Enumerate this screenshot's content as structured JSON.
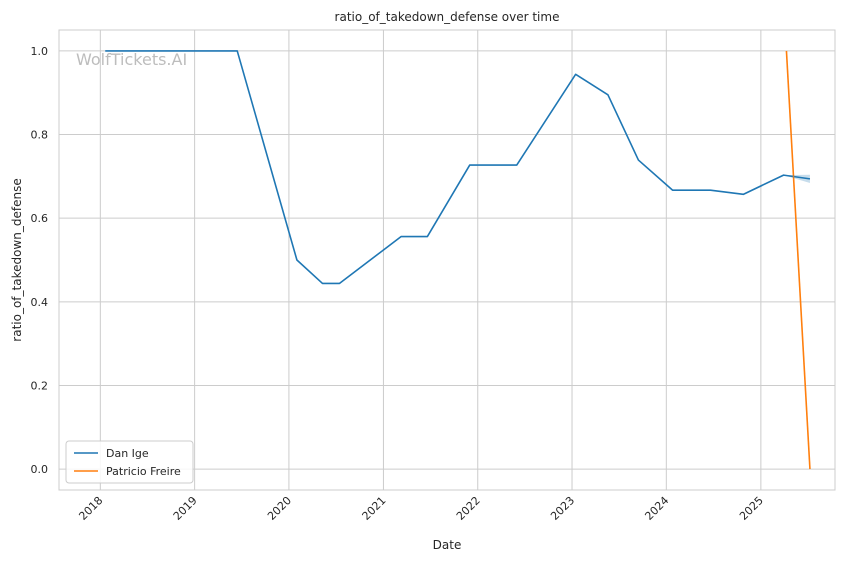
{
  "chart_data": {
    "type": "line",
    "title": "ratio_of_takedown_defense over time",
    "xlabel": "Date",
    "ylabel": "ratio_of_takedown_defense",
    "watermark": "WolfTickets.AI",
    "xlim": [
      "2017-07-25",
      "2025-10-15"
    ],
    "ylim": [
      -0.05,
      1.05
    ],
    "x_ticks": [
      {
        "value": "2018-01-01",
        "label": "2018"
      },
      {
        "value": "2019-01-01",
        "label": "2019"
      },
      {
        "value": "2020-01-01",
        "label": "2020"
      },
      {
        "value": "2021-01-01",
        "label": "2021"
      },
      {
        "value": "2022-01-01",
        "label": "2022"
      },
      {
        "value": "2023-01-01",
        "label": "2023"
      },
      {
        "value": "2024-01-01",
        "label": "2024"
      },
      {
        "value": "2025-01-01",
        "label": "2025"
      }
    ],
    "y_ticks": [
      {
        "value": 0.0,
        "label": "0.0"
      },
      {
        "value": 0.2,
        "label": "0.2"
      },
      {
        "value": 0.4,
        "label": "0.4"
      },
      {
        "value": 0.6,
        "label": "0.6"
      },
      {
        "value": 0.8,
        "label": "0.8"
      },
      {
        "value": 1.0,
        "label": "1.0"
      }
    ],
    "grid": true,
    "legend_position": "lower-left",
    "series": [
      {
        "name": "Dan Ige",
        "color": "#1f77b4",
        "points": [
          {
            "x": "2018-01-20",
            "y": 1.0
          },
          {
            "x": "2019-06-15",
            "y": 1.0
          },
          {
            "x": "2020-02-01",
            "y": 0.5
          },
          {
            "x": "2020-05-10",
            "y": 0.444
          },
          {
            "x": "2020-07-15",
            "y": 0.444
          },
          {
            "x": "2021-03-10",
            "y": 0.556
          },
          {
            "x": "2021-06-20",
            "y": 0.556
          },
          {
            "x": "2021-12-01",
            "y": 0.727
          },
          {
            "x": "2022-06-01",
            "y": 0.727
          },
          {
            "x": "2023-01-15",
            "y": 0.944
          },
          {
            "x": "2023-05-20",
            "y": 0.895
          },
          {
            "x": "2023-09-15",
            "y": 0.739
          },
          {
            "x": "2024-01-25",
            "y": 0.667
          },
          {
            "x": "2024-06-20",
            "y": 0.667
          },
          {
            "x": "2024-10-25",
            "y": 0.657
          },
          {
            "x": "2025-03-30",
            "y": 0.703
          },
          {
            "x": "2025-07-10",
            "y": 0.694
          }
        ]
      },
      {
        "name": "Patricio Freire",
        "color": "#ff7f0e",
        "points": [
          {
            "x": "2025-04-10",
            "y": 1.0
          },
          {
            "x": "2025-07-10",
            "y": 0.0
          }
        ]
      }
    ]
  }
}
